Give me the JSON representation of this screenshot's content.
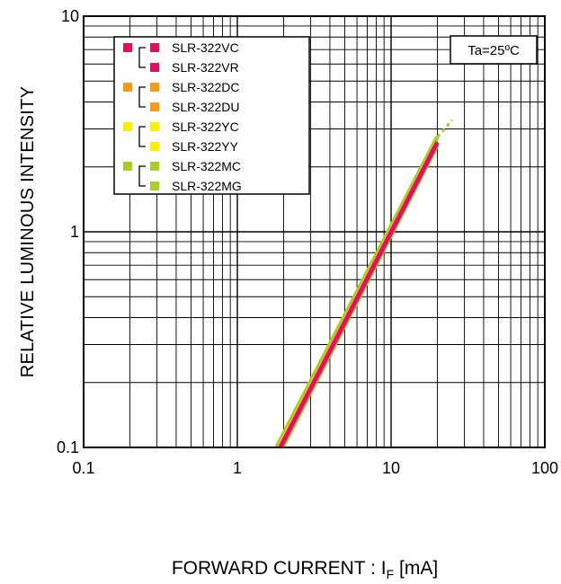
{
  "chart_data": {
    "type": "line",
    "title": "",
    "xlabel": "FORWARD CURRENT : I",
    "xlabel_sub": "F",
    "xlabel_unit": " [mA]",
    "ylabel": "RELATIVE LUMINOUS INTENSITY",
    "x_scale": "log",
    "y_scale": "log",
    "xlim": [
      0.1,
      100
    ],
    "ylim": [
      0.1,
      10
    ],
    "x_ticks": [
      "0.1",
      "1",
      "10",
      "100"
    ],
    "y_ticks": [
      "0.1",
      "1",
      "10"
    ],
    "grid": true,
    "legend_placement": "top-left",
    "annotation": "Ta=25ºC",
    "series": [
      {
        "name": "SLR-322MC / SLR-322MG",
        "color": "#a8cc2a",
        "x": [
          1.8,
          20
        ],
        "y": [
          0.1,
          2.75
        ],
        "dotted_x": [
          20,
          25
        ],
        "dotted_y": [
          2.75,
          3.3
        ]
      },
      {
        "name": "SLR-322YC / SLR-322YY",
        "color": "#ffee00",
        "x": [
          1.88,
          20
        ],
        "y": [
          0.1,
          2.6
        ]
      },
      {
        "name": "SLR-322DC / SLR-322DU",
        "color": "#f59a1c",
        "x": [
          1.95,
          20
        ],
        "y": [
          0.1,
          2.55
        ]
      },
      {
        "name": "SLR-322VC / SLR-322VR",
        "color": "#e0115f",
        "x": [
          1.9,
          20
        ],
        "y": [
          0.1,
          2.6
        ]
      }
    ],
    "legend_groups": [
      {
        "color": "#e0115f",
        "labels": [
          "SLR-322VC",
          "SLR-322VR"
        ]
      },
      {
        "color": "#f59a1c",
        "labels": [
          "SLR-322DC",
          "SLR-322DU"
        ]
      },
      {
        "color": "#ffee00",
        "labels": [
          "SLR-322YC",
          "SLR-322YY"
        ]
      },
      {
        "color": "#a8cc2a",
        "labels": [
          "SLR-322MC",
          "SLR-322MG"
        ]
      }
    ]
  }
}
